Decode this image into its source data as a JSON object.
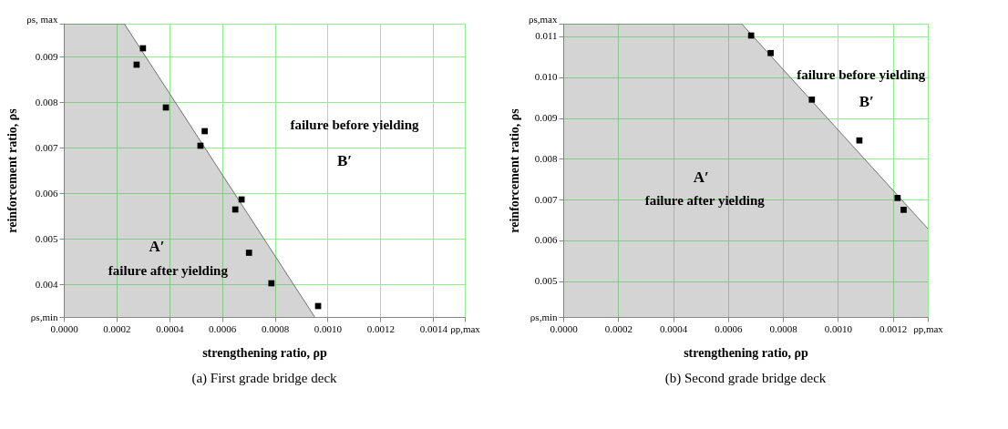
{
  "chart_data": [
    {
      "type": "scatter",
      "title": "(a) First grade bridge deck",
      "xlabel": "strengthening ratio, ρp",
      "ylabel": "reinforcement ratio, ρs",
      "xlim": [
        0,
        0.00152
      ],
      "ylim": [
        0.00328,
        0.00972
      ],
      "xticks": [
        {
          "value": 0,
          "label": "0.0000"
        },
        {
          "value": 0.0002,
          "label": "0.0002"
        },
        {
          "value": 0.0004,
          "label": "0.0004"
        },
        {
          "value": 0.0006,
          "label": "0.0006"
        },
        {
          "value": 0.0008,
          "label": "0.0008"
        },
        {
          "value": 0.001,
          "label": "0.0010"
        },
        {
          "value": 0.0012,
          "label": "0.0012"
        },
        {
          "value": 0.0014,
          "label": "0.0014"
        },
        {
          "value": 0.00152,
          "label": "ρp,max"
        }
      ],
      "yticks": [
        {
          "value": 0.00328,
          "label": "ρs,min"
        },
        {
          "value": 0.004,
          "label": "0.004"
        },
        {
          "value": 0.005,
          "label": "0.005"
        },
        {
          "value": 0.006,
          "label": "0.006"
        },
        {
          "value": 0.007,
          "label": "0.007"
        },
        {
          "value": 0.008,
          "label": "0.008"
        },
        {
          "value": 0.009,
          "label": "0.009"
        },
        {
          "value": 0.00972,
          "label": "ρs, max"
        }
      ],
      "grid": true,
      "series": [
        {
          "type": "area",
          "color": "#707070",
          "x": [
            0,
            0.000229,
            0.000951
          ],
          "values": [
            0.00972,
            0.00972,
            0.00328
          ]
        },
        {
          "marker": "square",
          "color": "#000000",
          "x": [
            0.0003,
            0.000276,
            0.000387,
            0.000534,
            0.000518,
            0.000674,
            0.00065,
            0.000702,
            0.000787,
            0.000964
          ],
          "values": [
            0.00918,
            0.00882,
            0.00788,
            0.00736,
            0.00704,
            0.00586,
            0.00564,
            0.00469,
            0.00402,
            0.00352
          ]
        }
      ],
      "annotations": [
        "failure before yielding",
        "B′",
        "A′",
        "failure after yielding"
      ]
    },
    {
      "type": "scatter",
      "title": "(b) Second grade bridge deck",
      "xlabel": "strengthening ratio, ρp",
      "ylabel": "reinforcement ratio, ρs",
      "xlim": [
        0,
        0.001327
      ],
      "ylim": [
        0.004125,
        0.01131
      ],
      "xticks": [
        {
          "value": 0,
          "label": "0.0000"
        },
        {
          "value": 0.0002,
          "label": "0.0002"
        },
        {
          "value": 0.0004,
          "label": "0.0004"
        },
        {
          "value": 0.0006,
          "label": "0.0006"
        },
        {
          "value": 0.0008,
          "label": "0.0008"
        },
        {
          "value": 0.001,
          "label": "0.0010"
        },
        {
          "value": 0.0012,
          "label": "0.0012"
        },
        {
          "value": 0.001327,
          "label": "ρp,max"
        }
      ],
      "yticks": [
        {
          "value": 0.004125,
          "label": "ρs,min"
        },
        {
          "value": 0.005,
          "label": "0.005"
        },
        {
          "value": 0.006,
          "label": "0.006"
        },
        {
          "value": 0.007,
          "label": "0.007"
        },
        {
          "value": 0.008,
          "label": "0.008"
        },
        {
          "value": 0.009,
          "label": "0.009"
        },
        {
          "value": 0.01,
          "label": "0.010"
        },
        {
          "value": 0.011,
          "label": "0.011"
        },
        {
          "value": 0.01131,
          "label": "ρs,max"
        }
      ],
      "grid": true,
      "series": [
        {
          "type": "area",
          "color": "#707070",
          "x": [
            0,
            0.000649,
            0.001327
          ],
          "values": [
            0.01131,
            0.01131,
            0.00629
          ]
        },
        {
          "marker": "square",
          "color": "#000000",
          "x": [
            0.000684,
            0.000755,
            0.000905,
            0.001078,
            0.001217,
            0.001239
          ],
          "values": [
            0.01102,
            0.01059,
            0.00945,
            0.00845,
            0.00704,
            0.00675
          ]
        }
      ],
      "annotations": [
        "failure before yielding",
        "B′",
        "A′",
        "failure after yielding"
      ]
    }
  ]
}
